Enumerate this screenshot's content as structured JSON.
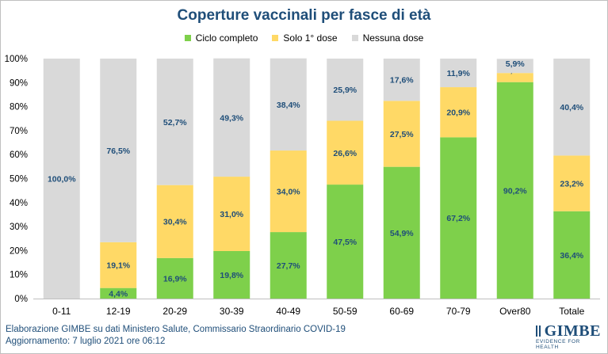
{
  "chart_data": {
    "type": "bar",
    "stacked": true,
    "title": "Coperture vaccinali per fasce di età",
    "categories": [
      "0-11",
      "12-19",
      "20-29",
      "30-39",
      "40-49",
      "50-59",
      "60-69",
      "70-79",
      "Over80",
      "Totale"
    ],
    "series": [
      {
        "name": "Ciclo completo",
        "color": "#7ed04b",
        "values": [
          0,
          4.4,
          16.9,
          19.8,
          27.7,
          47.5,
          54.9,
          67.2,
          90.2,
          36.4
        ],
        "labels": [
          "",
          "4,4%",
          "16,9%",
          "19,8%",
          "27,7%",
          "47,5%",
          "54,9%",
          "67,2%",
          "90,2%",
          "36,4%"
        ]
      },
      {
        "name": "Solo 1° dose",
        "color": "#ffd966",
        "values": [
          0,
          19.1,
          30.4,
          31.0,
          34.0,
          26.6,
          27.5,
          20.9,
          3.8,
          23.2
        ],
        "labels": [
          "",
          "19,1%",
          "30,4%",
          "31,0%",
          "34,0%",
          "26,6%",
          "27,5%",
          "20,9%",
          "3,8%",
          "23,2%"
        ]
      },
      {
        "name": "Nessuna dose",
        "color": "#d9d9d9",
        "values": [
          100.0,
          76.5,
          52.7,
          49.3,
          38.4,
          25.9,
          17.6,
          11.9,
          5.9,
          40.4
        ],
        "labels": [
          "100,0%",
          "76,5%",
          "52,7%",
          "49,3%",
          "38,4%",
          "25,9%",
          "17,6%",
          "11,9%",
          "5,9%",
          "40,4%"
        ]
      }
    ],
    "ylim": [
      0,
      100
    ],
    "yticks": [
      "0%",
      "10%",
      "20%",
      "30%",
      "40%",
      "50%",
      "60%",
      "70%",
      "80%",
      "90%",
      "100%"
    ],
    "grid": false,
    "legend_position": "top",
    "label_color": "#1f4e79"
  },
  "footer": {
    "line1": "Elaborazione GIMBE su dati Ministero Salute, Commissario Straordinario COVID-19",
    "line2": "Aggiornamento: 7 luglio 2021 ore 06:12"
  },
  "logo": {
    "name": "GIMBE",
    "tagline": "EVIDENCE FOR HEALTH"
  }
}
